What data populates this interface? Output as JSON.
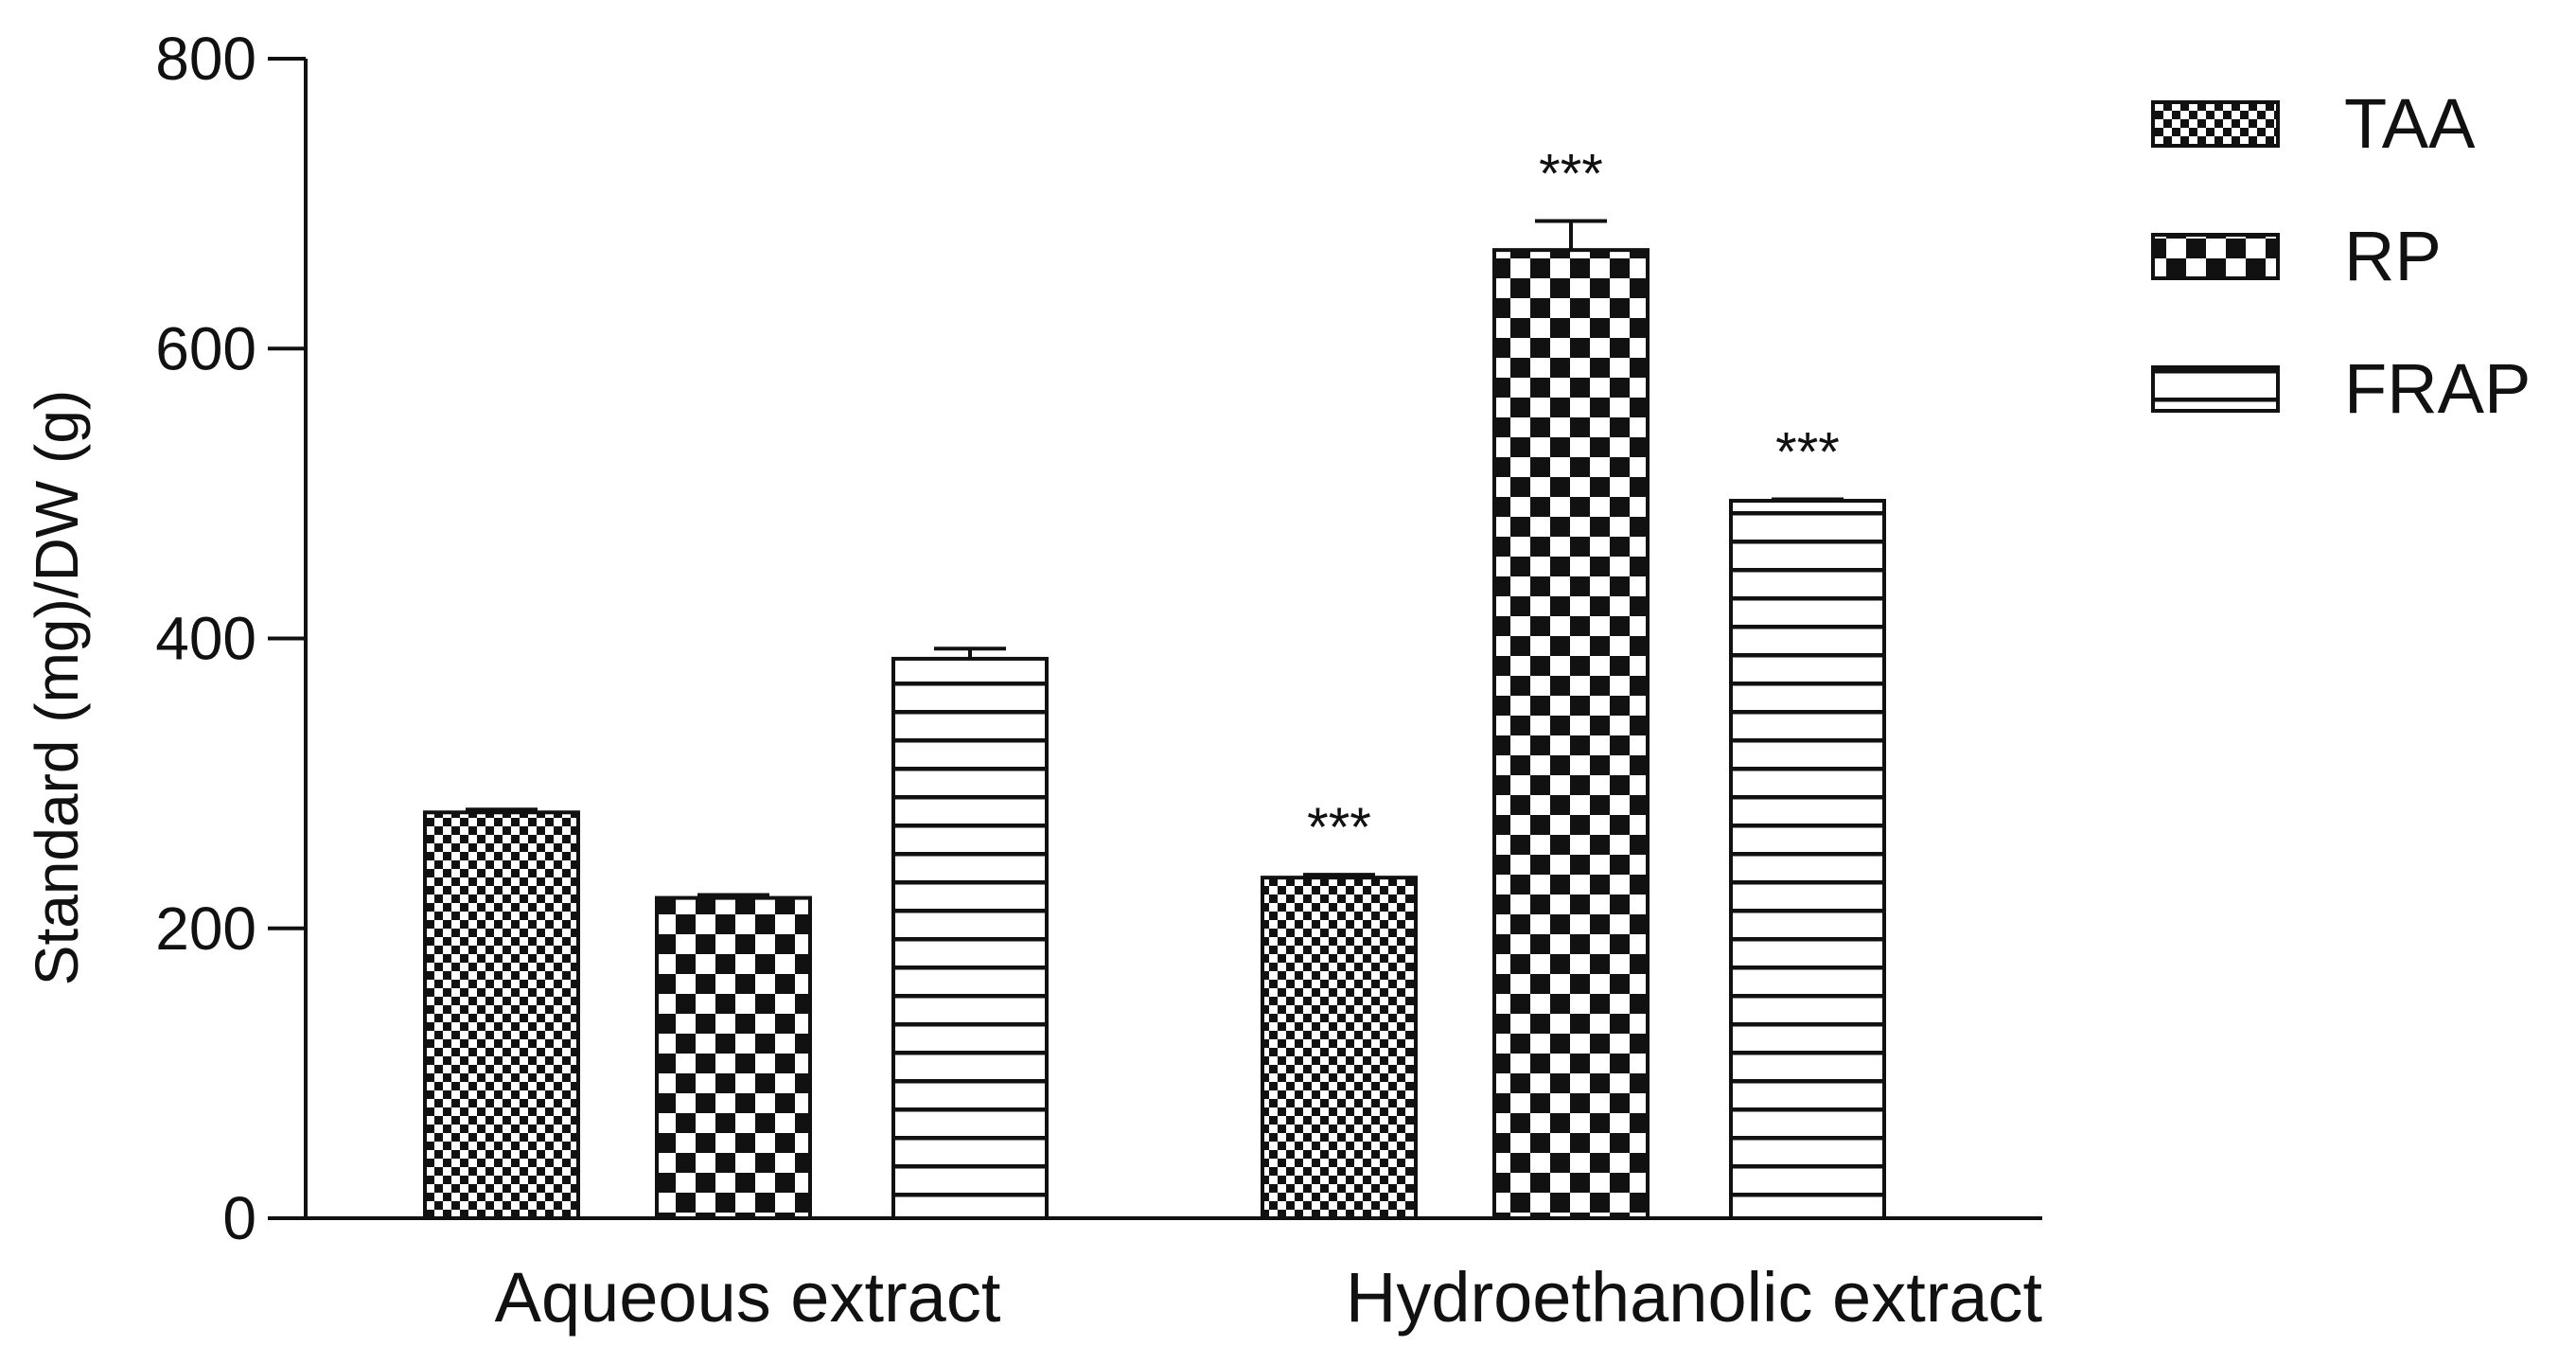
{
  "chart_data": {
    "type": "bar",
    "ylabel": "Standard (mg)/DW (g)",
    "ylim": [
      0,
      800
    ],
    "yticks": [
      0,
      200,
      400,
      600,
      800
    ],
    "categories": [
      "Aqueous extract",
      "Hydroethanolic  extract"
    ],
    "series": [
      {
        "name": "TAA",
        "pattern": "fine-checker",
        "values": [
          280,
          235
        ],
        "errors": [
          2,
          2
        ],
        "annotations": [
          "",
          "***"
        ]
      },
      {
        "name": "RP",
        "pattern": "coarse-checker",
        "values": [
          221,
          668
        ],
        "errors": [
          2,
          20
        ],
        "annotations": [
          "",
          "***"
        ]
      },
      {
        "name": "FRAP",
        "pattern": "horizontal-stripes",
        "values": [
          386,
          495
        ],
        "errors": [
          7,
          1
        ],
        "annotations": [
          "",
          "***"
        ]
      }
    ],
    "legend": {
      "position": "top-right"
    },
    "grid": false,
    "colors": {
      "ink": "#111111",
      "background": "#ffffff"
    }
  }
}
